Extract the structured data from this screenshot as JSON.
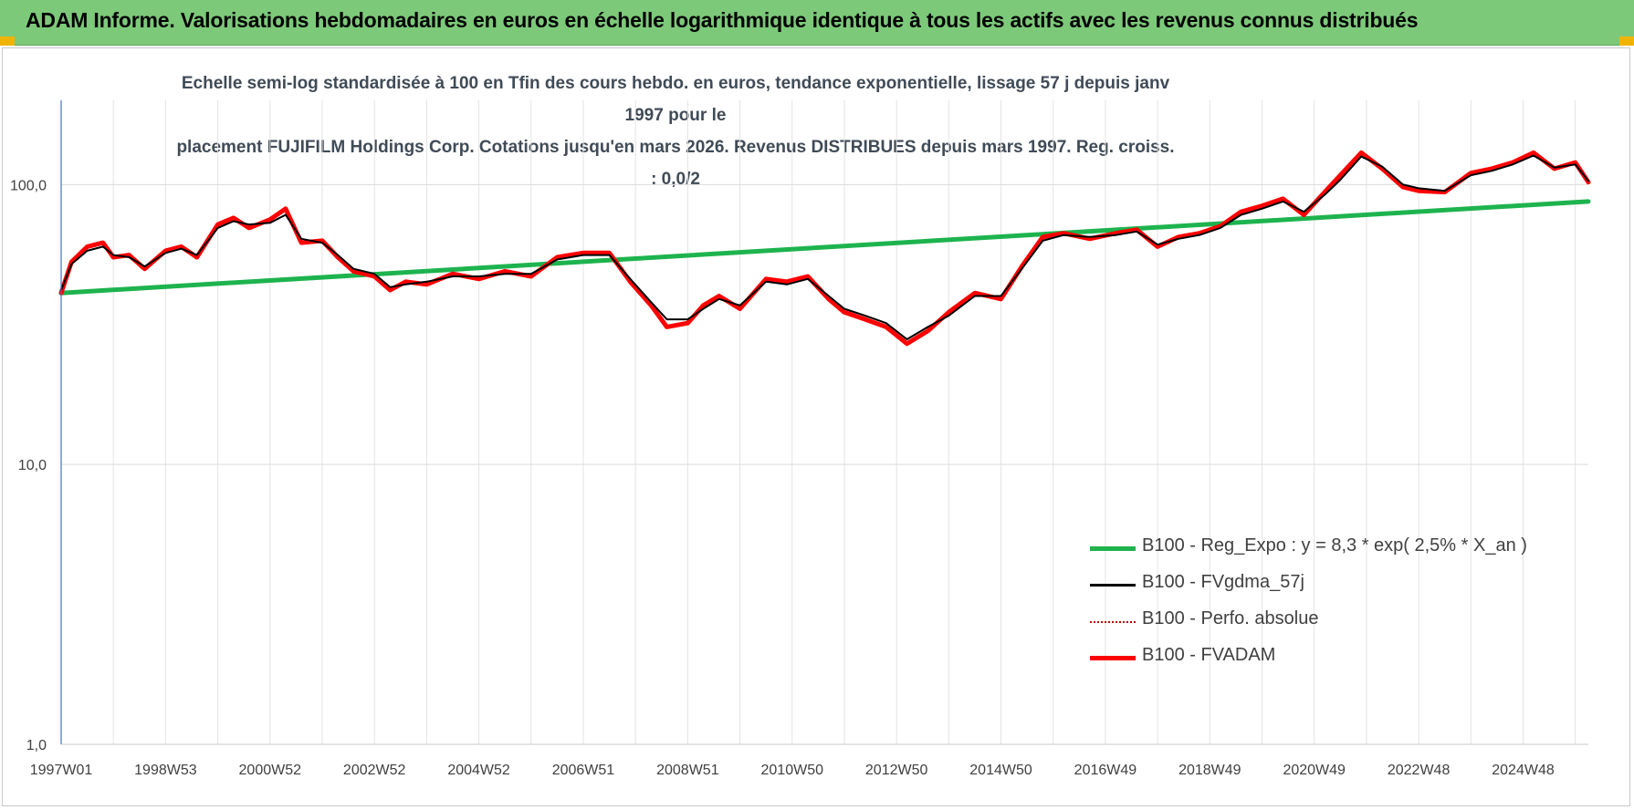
{
  "header": {
    "title": "ADAM Informe. Valorisations hebdomadaires en euros en échelle logarithmique identique à tous les actifs avec les revenus connus distribués"
  },
  "chart_data": {
    "type": "line",
    "title_lines": [
      "Echelle semi-log standardisée à 100 en Tfin des cours hebdo. en euros, tendance exponentielle, lissage 57 j depuis janv 1997 pour le",
      "placement FUJIFILM  Holdings Corp. Cotations jusqu'en mars 2026.  Revenus DISTRIBUES depuis mars 1997. Reg. croiss. : 0,0/2"
    ],
    "y_scale": "log",
    "ylim": [
      1,
      200
    ],
    "y_ticks": [
      {
        "value": 1,
        "label": "1,0"
      },
      {
        "value": 10,
        "label": "10,0"
      },
      {
        "value": 100,
        "label": "100,0"
      }
    ],
    "xlim": [
      1997.0,
      2026.25
    ],
    "x_ticks": [
      {
        "value": 1997.0,
        "label": "1997W01"
      },
      {
        "value": 1999.0,
        "label": "1998W53"
      },
      {
        "value": 2001.0,
        "label": "2000W52"
      },
      {
        "value": 2003.0,
        "label": "2002W52"
      },
      {
        "value": 2005.0,
        "label": "2004W52"
      },
      {
        "value": 2007.0,
        "label": "2006W51"
      },
      {
        "value": 2009.0,
        "label": "2008W51"
      },
      {
        "value": 2011.0,
        "label": "2010W50"
      },
      {
        "value": 2013.0,
        "label": "2012W50"
      },
      {
        "value": 2015.0,
        "label": "2014W50"
      },
      {
        "value": 2017.0,
        "label": "2016W49"
      },
      {
        "value": 2019.0,
        "label": "2018W49"
      },
      {
        "value": 2021.0,
        "label": "2020W49"
      },
      {
        "value": 2023.0,
        "label": "2022W48"
      },
      {
        "value": 2025.0,
        "label": "2024W48"
      }
    ],
    "grid": true,
    "legend_position": "lower-right",
    "series": [
      {
        "name": "B100 - Reg_Expo : y = 8,3 * exp( 2,5% *  X_an )",
        "color": "#1db34e",
        "style": "solid-thick",
        "x": [
          1997.0,
          2026.25
        ],
        "y": [
          41,
          87
        ]
      },
      {
        "name": "B100 - FVgdma_57j",
        "color": "#000000",
        "style": "solid-thin",
        "x": [
          1997.0,
          1997.2,
          1997.5,
          1997.8,
          1998.0,
          1998.3,
          1998.6,
          1999.0,
          1999.3,
          1999.6,
          2000.0,
          2000.3,
          2000.6,
          2001.0,
          2001.3,
          2001.6,
          2002.0,
          2002.3,
          2002.6,
          2003.0,
          2003.3,
          2003.6,
          2004.0,
          2004.5,
          2005.0,
          2005.5,
          2006.0,
          2006.5,
          2007.0,
          2007.5,
          2007.9,
          2008.3,
          2008.6,
          2009.0,
          2009.3,
          2009.6,
          2010.0,
          2010.5,
          2010.9,
          2011.3,
          2011.7,
          2012.0,
          2012.4,
          2012.8,
          2013.2,
          2013.6,
          2014.0,
          2014.5,
          2015.0,
          2015.4,
          2015.8,
          2016.2,
          2016.7,
          2017.2,
          2017.6,
          2018.0,
          2018.4,
          2018.8,
          2019.2,
          2019.6,
          2020.0,
          2020.4,
          2020.8,
          2021.2,
          2021.5,
          2021.9,
          2022.3,
          2022.7,
          2023.0,
          2023.5,
          2024.0,
          2024.4,
          2024.8,
          2025.2,
          2025.6,
          2026.0,
          2026.25
        ],
        "y": [
          42,
          52,
          58,
          60,
          56,
          55,
          51,
          57,
          59,
          56,
          70,
          74,
          72,
          73,
          78,
          64,
          62,
          56,
          50,
          48,
          43,
          44,
          45,
          47,
          47,
          48,
          48,
          54,
          56,
          56,
          46,
          38,
          33,
          33,
          36,
          39,
          37,
          45,
          44,
          46,
          40,
          36,
          34,
          32,
          28,
          31,
          34,
          40,
          40,
          50,
          63,
          66,
          65,
          66,
          68,
          61,
          64,
          66,
          70,
          78,
          82,
          87,
          80,
          92,
          104,
          126,
          116,
          100,
          97,
          95,
          108,
          112,
          118,
          127,
          115,
          118,
          103
        ]
      },
      {
        "name": "B100 - Perfo. absolue",
        "color": "#c00000",
        "style": "dotted",
        "x": [],
        "y": []
      },
      {
        "name": "B100 - FVADAM",
        "color": "#ff0000",
        "style": "solid-thick",
        "x": [
          1997.0,
          1997.2,
          1997.5,
          1997.8,
          1998.0,
          1998.3,
          1998.6,
          1999.0,
          1999.3,
          1999.6,
          2000.0,
          2000.3,
          2000.6,
          2001.0,
          2001.3,
          2001.6,
          2002.0,
          2002.3,
          2002.6,
          2003.0,
          2003.3,
          2003.6,
          2004.0,
          2004.5,
          2005.0,
          2005.5,
          2006.0,
          2006.5,
          2007.0,
          2007.5,
          2007.9,
          2008.3,
          2008.6,
          2009.0,
          2009.3,
          2009.6,
          2010.0,
          2010.5,
          2010.9,
          2011.3,
          2011.7,
          2012.0,
          2012.4,
          2012.8,
          2013.2,
          2013.6,
          2014.0,
          2014.5,
          2015.0,
          2015.4,
          2015.8,
          2016.2,
          2016.7,
          2017.2,
          2017.6,
          2018.0,
          2018.4,
          2018.8,
          2019.2,
          2019.6,
          2020.0,
          2020.4,
          2020.8,
          2021.2,
          2021.5,
          2021.9,
          2022.3,
          2022.7,
          2023.0,
          2023.5,
          2024.0,
          2024.4,
          2024.8,
          2025.2,
          2025.6,
          2026.0,
          2026.25
        ],
        "y": [
          41,
          53,
          60,
          62,
          55,
          56,
          50,
          58,
          60,
          55,
          72,
          76,
          70,
          75,
          82,
          62,
          63,
          55,
          49,
          47,
          42,
          45,
          44,
          48,
          46,
          49,
          47,
          55,
          57,
          57,
          45,
          37,
          31,
          32,
          37,
          40,
          36,
          46,
          45,
          47,
          39,
          35,
          33,
          31,
          27,
          30,
          35,
          41,
          39,
          51,
          65,
          67,
          64,
          67,
          69,
          60,
          65,
          67,
          71,
          80,
          84,
          89,
          78,
          94,
          108,
          130,
          114,
          98,
          95,
          94,
          110,
          114,
          120,
          130,
          114,
          120,
          102
        ]
      }
    ]
  }
}
